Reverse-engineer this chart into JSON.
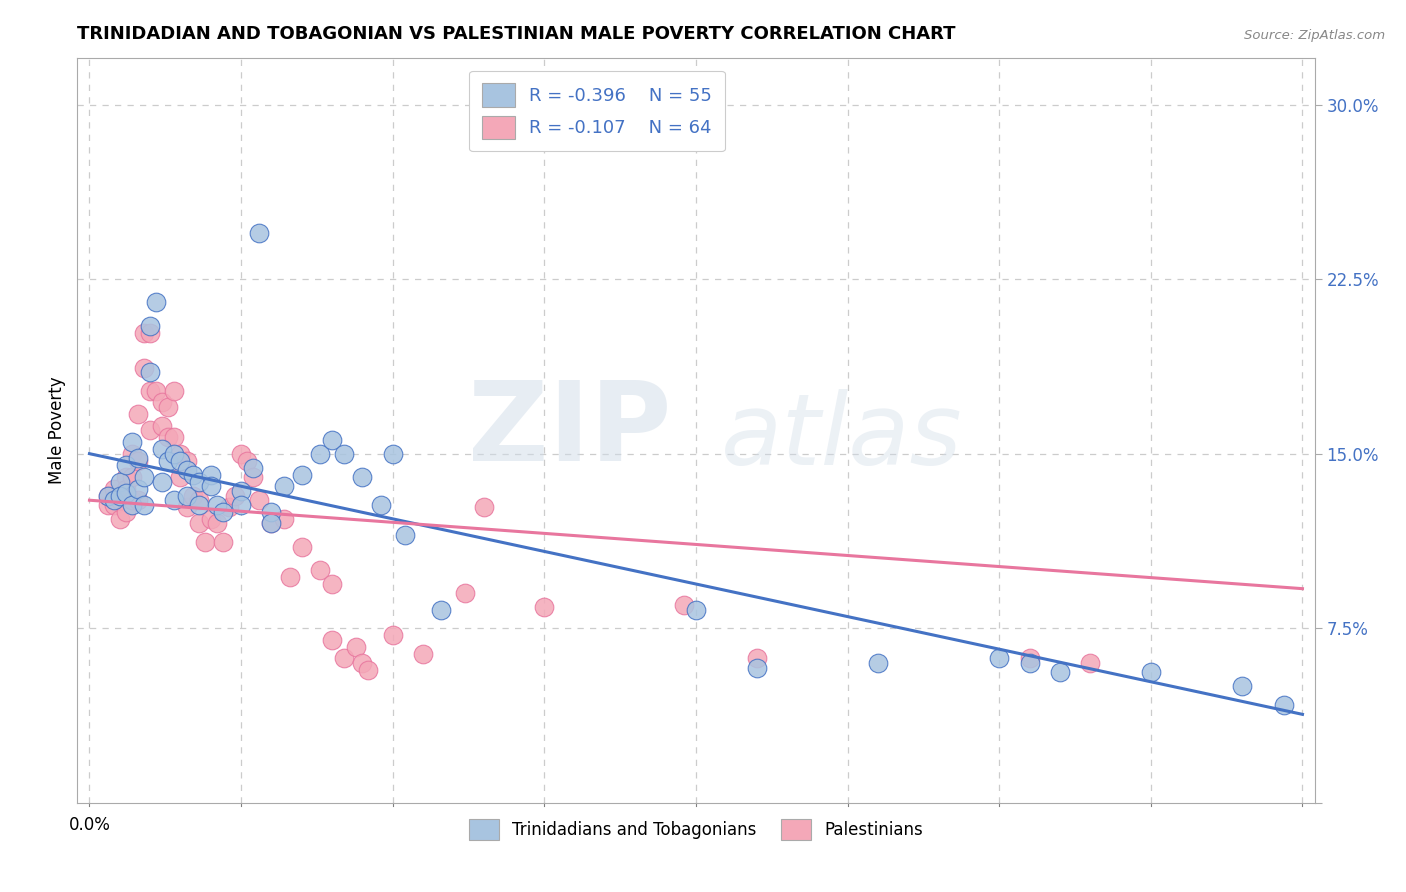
{
  "title": "TRINIDADIAN AND TOBAGONIAN VS PALESTINIAN MALE POVERTY CORRELATION CHART",
  "source": "Source: ZipAtlas.com",
  "ylabel": "Male Poverty",
  "x_label_bottom_left": "0.0%",
  "right_y_ticks": [
    0.0,
    0.075,
    0.15,
    0.225,
    0.3
  ],
  "right_y_tick_labels": [
    "",
    "7.5%",
    "15.0%",
    "22.5%",
    "30.0%"
  ],
  "legend_blue_r": "R = -0.396",
  "legend_blue_n": "N = 55",
  "legend_pink_r": "R = -0.107",
  "legend_pink_n": "N = 64",
  "legend_blue_label": "Trinidadians and Tobagonians",
  "legend_pink_label": "Palestinians",
  "blue_color": "#a8c4e0",
  "pink_color": "#f4a8b8",
  "blue_line_color": "#4472c4",
  "pink_line_color": "#e8769e",
  "watermark_zip": "ZIP",
  "watermark_atlas": "atlas",
  "blue_dots": [
    [
      0.003,
      0.132
    ],
    [
      0.004,
      0.13
    ],
    [
      0.005,
      0.138
    ],
    [
      0.005,
      0.132
    ],
    [
      0.006,
      0.145
    ],
    [
      0.006,
      0.133
    ],
    [
      0.007,
      0.155
    ],
    [
      0.007,
      0.128
    ],
    [
      0.008,
      0.148
    ],
    [
      0.008,
      0.135
    ],
    [
      0.009,
      0.14
    ],
    [
      0.009,
      0.128
    ],
    [
      0.01,
      0.205
    ],
    [
      0.01,
      0.185
    ],
    [
      0.011,
      0.215
    ],
    [
      0.012,
      0.152
    ],
    [
      0.012,
      0.138
    ],
    [
      0.013,
      0.147
    ],
    [
      0.014,
      0.15
    ],
    [
      0.014,
      0.13
    ],
    [
      0.015,
      0.147
    ],
    [
      0.016,
      0.143
    ],
    [
      0.016,
      0.132
    ],
    [
      0.017,
      0.141
    ],
    [
      0.018,
      0.138
    ],
    [
      0.018,
      0.128
    ],
    [
      0.02,
      0.141
    ],
    [
      0.02,
      0.136
    ],
    [
      0.021,
      0.128
    ],
    [
      0.022,
      0.125
    ],
    [
      0.025,
      0.134
    ],
    [
      0.025,
      0.128
    ],
    [
      0.027,
      0.144
    ],
    [
      0.028,
      0.245
    ],
    [
      0.03,
      0.125
    ],
    [
      0.03,
      0.12
    ],
    [
      0.032,
      0.136
    ],
    [
      0.035,
      0.141
    ],
    [
      0.038,
      0.15
    ],
    [
      0.04,
      0.156
    ],
    [
      0.042,
      0.15
    ],
    [
      0.045,
      0.14
    ],
    [
      0.048,
      0.128
    ],
    [
      0.05,
      0.15
    ],
    [
      0.052,
      0.115
    ],
    [
      0.058,
      0.083
    ],
    [
      0.1,
      0.083
    ],
    [
      0.11,
      0.058
    ],
    [
      0.13,
      0.06
    ],
    [
      0.15,
      0.062
    ],
    [
      0.155,
      0.06
    ],
    [
      0.16,
      0.056
    ],
    [
      0.175,
      0.056
    ],
    [
      0.19,
      0.05
    ],
    [
      0.197,
      0.042
    ]
  ],
  "pink_dots": [
    [
      0.003,
      0.128
    ],
    [
      0.003,
      0.132
    ],
    [
      0.004,
      0.135
    ],
    [
      0.004,
      0.128
    ],
    [
      0.005,
      0.13
    ],
    [
      0.005,
      0.122
    ],
    [
      0.006,
      0.14
    ],
    [
      0.006,
      0.135
    ],
    [
      0.006,
      0.125
    ],
    [
      0.007,
      0.15
    ],
    [
      0.007,
      0.14
    ],
    [
      0.007,
      0.13
    ],
    [
      0.008,
      0.167
    ],
    [
      0.008,
      0.147
    ],
    [
      0.008,
      0.13
    ],
    [
      0.009,
      0.202
    ],
    [
      0.009,
      0.187
    ],
    [
      0.01,
      0.202
    ],
    [
      0.01,
      0.177
    ],
    [
      0.01,
      0.16
    ],
    [
      0.011,
      0.177
    ],
    [
      0.012,
      0.172
    ],
    [
      0.012,
      0.162
    ],
    [
      0.013,
      0.17
    ],
    [
      0.013,
      0.157
    ],
    [
      0.014,
      0.177
    ],
    [
      0.014,
      0.157
    ],
    [
      0.015,
      0.15
    ],
    [
      0.015,
      0.14
    ],
    [
      0.016,
      0.147
    ],
    [
      0.016,
      0.127
    ],
    [
      0.017,
      0.132
    ],
    [
      0.018,
      0.13
    ],
    [
      0.018,
      0.12
    ],
    [
      0.019,
      0.112
    ],
    [
      0.02,
      0.122
    ],
    [
      0.021,
      0.12
    ],
    [
      0.022,
      0.112
    ],
    [
      0.023,
      0.127
    ],
    [
      0.024,
      0.132
    ],
    [
      0.025,
      0.15
    ],
    [
      0.026,
      0.147
    ],
    [
      0.027,
      0.14
    ],
    [
      0.028,
      0.13
    ],
    [
      0.03,
      0.12
    ],
    [
      0.032,
      0.122
    ],
    [
      0.033,
      0.097
    ],
    [
      0.035,
      0.11
    ],
    [
      0.038,
      0.1
    ],
    [
      0.04,
      0.094
    ],
    [
      0.04,
      0.07
    ],
    [
      0.042,
      0.062
    ],
    [
      0.044,
      0.067
    ],
    [
      0.045,
      0.06
    ],
    [
      0.046,
      0.057
    ],
    [
      0.05,
      0.072
    ],
    [
      0.055,
      0.064
    ],
    [
      0.062,
      0.09
    ],
    [
      0.065,
      0.127
    ],
    [
      0.075,
      0.084
    ],
    [
      0.098,
      0.085
    ],
    [
      0.11,
      0.062
    ],
    [
      0.155,
      0.062
    ],
    [
      0.165,
      0.06
    ]
  ],
  "blue_line_x": [
    0.0,
    0.2
  ],
  "blue_line_y": [
    0.15,
    0.038
  ],
  "pink_line_x": [
    0.0,
    0.2
  ],
  "pink_line_y": [
    0.13,
    0.092
  ],
  "xlim": [
    -0.002,
    0.202
  ],
  "ylim": [
    0.0,
    0.32
  ],
  "grid_color": "#cccccc",
  "bg_color": "#ffffff"
}
